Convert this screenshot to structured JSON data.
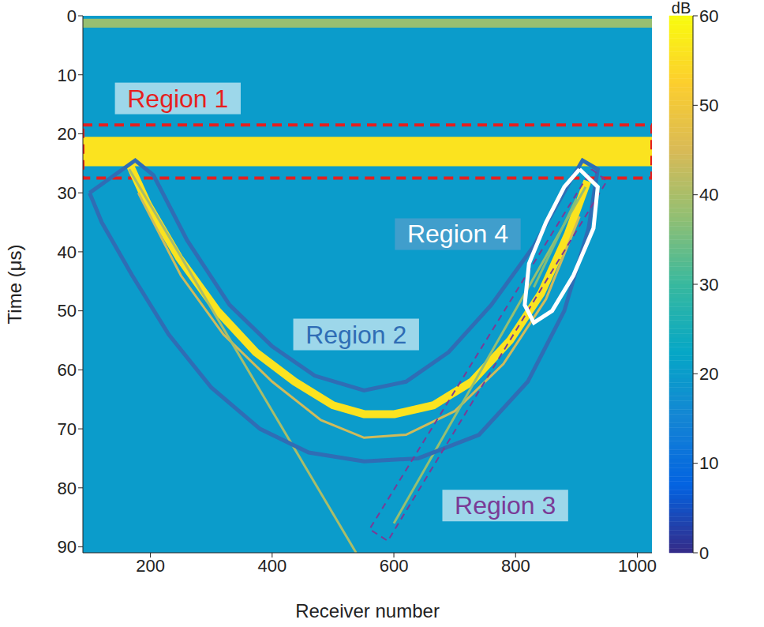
{
  "chart_data": {
    "type": "heatmap",
    "x_label": "Receiver number",
    "y_label": "Time (μs)",
    "xlim": [
      89,
      1024
    ],
    "xticks": [
      200,
      400,
      600,
      800,
      1000
    ],
    "ylim": [
      0,
      91
    ],
    "yticks": [
      0,
      10,
      20,
      30,
      40,
      50,
      60,
      70,
      80,
      90
    ],
    "background_db": 20,
    "bands": [
      {
        "y": [
          0.5,
          2
        ],
        "db": 38
      },
      {
        "y": [
          20.5,
          25.5
        ],
        "db": 56
      }
    ],
    "traces": [
      {
        "db": 56,
        "points": [
          [
            165,
            25
          ],
          [
            196,
            32
          ],
          [
            247,
            41
          ],
          [
            310,
            50
          ],
          [
            373,
            57
          ],
          [
            437,
            62
          ],
          [
            500,
            66
          ],
          [
            551,
            67.5
          ],
          [
            601,
            67.5
          ],
          [
            665,
            66
          ],
          [
            728,
            62
          ],
          [
            791,
            55
          ],
          [
            842,
            47
          ],
          [
            886,
            37
          ],
          [
            918,
            28
          ]
        ]
      },
      {
        "db": 44,
        "points": [
          [
            180,
            30
          ],
          [
            250,
            44
          ],
          [
            320,
            54
          ],
          [
            400,
            62
          ],
          [
            480,
            68.5
          ],
          [
            551,
            71.5
          ],
          [
            620,
            71
          ],
          [
            700,
            67
          ],
          [
            780,
            59
          ],
          [
            850,
            48
          ],
          [
            905,
            34
          ]
        ]
      },
      {
        "db": 40,
        "points": [
          [
            165,
            26
          ],
          [
            538,
            91
          ]
        ]
      },
      {
        "db": 38,
        "points": [
          [
            915,
            29
          ],
          [
            600,
            86
          ]
        ]
      },
      {
        "db": 36,
        "points": [
          [
            900,
            31
          ],
          [
            830,
            46
          ]
        ]
      }
    ],
    "colorbar": {
      "label": "dB",
      "range": [
        0,
        60
      ],
      "ticks": [
        0,
        10,
        20,
        30,
        40,
        50,
        60
      ]
    },
    "annotations": [
      {
        "text": "Region 1",
        "color": "#e51f1f",
        "line_style": "dashed",
        "shape": "band",
        "y": [
          18.5,
          27.5
        ],
        "label_at": [
          245,
          14
        ]
      },
      {
        "text": "Region 2",
        "color": "#2f6db5",
        "line_style": "solid",
        "shape": "polygon",
        "points": [
          [
            100,
            30
          ],
          [
            175,
            24.5
          ],
          [
            205,
            27
          ],
          [
            260,
            38
          ],
          [
            330,
            49
          ],
          [
            400,
            56
          ],
          [
            470,
            61
          ],
          [
            551,
            63.5
          ],
          [
            620,
            62
          ],
          [
            690,
            57
          ],
          [
            760,
            49
          ],
          [
            830,
            39
          ],
          [
            890,
            28
          ],
          [
            910,
            24.5
          ],
          [
            935,
            26
          ],
          [
            920,
            36
          ],
          [
            880,
            50
          ],
          [
            820,
            62
          ],
          [
            740,
            71
          ],
          [
            640,
            75
          ],
          [
            551,
            75.5
          ],
          [
            460,
            74
          ],
          [
            380,
            70
          ],
          [
            300,
            63
          ],
          [
            230,
            54
          ],
          [
            170,
            44
          ],
          [
            120,
            35
          ]
        ],
        "label_at": [
          538,
          54
        ]
      },
      {
        "text": "Region 3",
        "color": "#7a3b96",
        "line_style": "dashed",
        "shape": "polygon",
        "points": [
          [
            925,
            26
          ],
          [
            950,
            28
          ],
          [
            590,
            89
          ],
          [
            560,
            87
          ]
        ],
        "label_at": [
          783,
          83
        ]
      },
      {
        "text": "Region 4",
        "color": "#ffffff",
        "line_style": "solid",
        "shape": "polygon",
        "points": [
          [
            905,
            26
          ],
          [
            935,
            29
          ],
          [
            928,
            36
          ],
          [
            895,
            44
          ],
          [
            860,
            50
          ],
          [
            830,
            52
          ],
          [
            815,
            49
          ],
          [
            822,
            42
          ],
          [
            850,
            35
          ],
          [
            880,
            29
          ]
        ],
        "label_at": [
          705,
          37
        ]
      }
    ]
  }
}
